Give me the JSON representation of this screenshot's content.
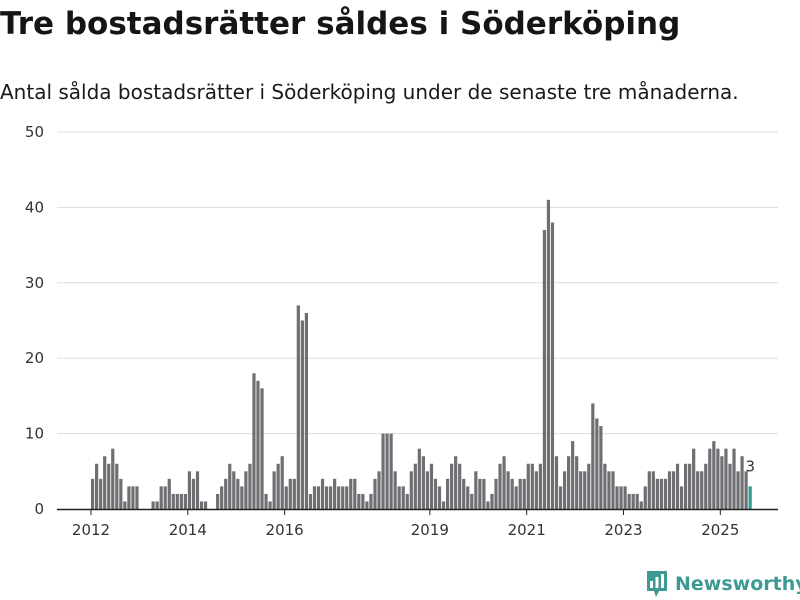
{
  "title": "Tre bostadsrätter såldes i Söderköping",
  "subtitle": "Antal sålda bostadsrätter i Söderköping under de senaste tre månaderna.",
  "brand": {
    "name": "Newsworthy",
    "color": "#3d9a93"
  },
  "colors": {
    "bar": "#6e6e73",
    "highlight": "#2a9d8f",
    "grid": "#dddddd"
  },
  "chart_data": {
    "type": "bar",
    "title": "Tre bostadsrätter såldes i Söderköping",
    "subtitle": "Antal sålda bostadsrätter i Söderköping under de senaste tre månaderna.",
    "x_start": "2012-01",
    "x_tick_labels": [
      "2012",
      "2014",
      "2016",
      "2019",
      "2021",
      "2023",
      "2025"
    ],
    "y_ticks": [
      0,
      10,
      20,
      30,
      40,
      50
    ],
    "ylim": [
      0,
      50
    ],
    "grid": true,
    "highlight_last": true,
    "last_value_label": "3",
    "values": [
      4,
      6,
      4,
      7,
      6,
      8,
      6,
      4,
      1,
      3,
      3,
      3,
      0,
      0,
      0,
      1,
      1,
      3,
      3,
      4,
      2,
      2,
      2,
      2,
      5,
      4,
      5,
      1,
      1,
      0,
      0,
      2,
      3,
      4,
      6,
      5,
      4,
      3,
      5,
      6,
      18,
      17,
      16,
      2,
      1,
      5,
      6,
      7,
      3,
      4,
      4,
      27,
      25,
      26,
      2,
      3,
      3,
      4,
      3,
      3,
      4,
      3,
      3,
      3,
      4,
      4,
      2,
      2,
      1,
      2,
      4,
      5,
      10,
      10,
      10,
      5,
      3,
      3,
      2,
      5,
      6,
      8,
      7,
      5,
      6,
      4,
      3,
      1,
      4,
      6,
      7,
      6,
      4,
      3,
      2,
      5,
      4,
      4,
      1,
      2,
      4,
      6,
      7,
      5,
      4,
      3,
      4,
      4,
      6,
      6,
      5,
      6,
      37,
      41,
      38,
      7,
      3,
      5,
      7,
      9,
      7,
      5,
      5,
      6,
      14,
      12,
      11,
      6,
      5,
      5,
      3,
      3,
      3,
      2,
      2,
      2,
      1,
      3,
      5,
      5,
      4,
      4,
      4,
      5,
      5,
      6,
      3,
      6,
      6,
      8,
      5,
      5,
      6,
      8,
      9,
      8,
      7,
      8,
      6,
      8,
      5,
      7,
      5,
      3
    ]
  }
}
